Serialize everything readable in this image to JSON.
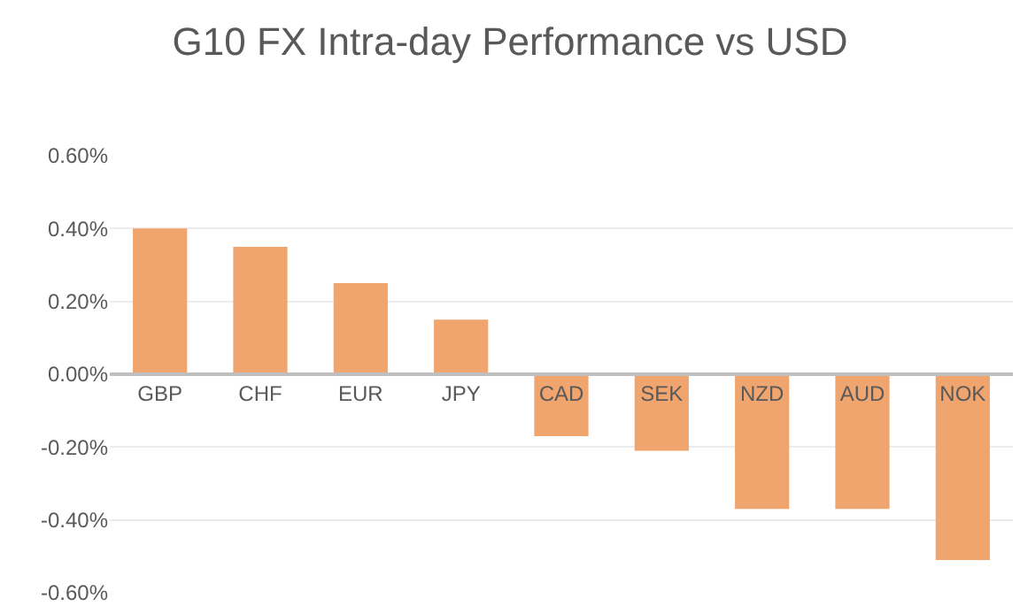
{
  "chart_data": {
    "type": "bar",
    "title": "G10 FX Intra-day Performance vs USD",
    "categories": [
      "GBP",
      "CHF",
      "EUR",
      "JPY",
      "CAD",
      "SEK",
      "NZD",
      "AUD",
      "NOK"
    ],
    "values": [
      0.4,
      0.35,
      0.25,
      0.15,
      -0.17,
      -0.21,
      -0.37,
      -0.37,
      -0.51
    ],
    "color": "#f0a46e",
    "ylim": [
      -0.6,
      0.6
    ],
    "yticks": [
      {
        "value": -0.6,
        "label": "-0.60%"
      },
      {
        "value": -0.4,
        "label": "-0.40%"
      },
      {
        "value": -0.2,
        "label": "-0.20%"
      },
      {
        "value": 0,
        "label": "0.00%"
      },
      {
        "value": 0.2,
        "label": "0.20%"
      },
      {
        "value": 0.4,
        "label": "0.40%"
      },
      {
        "value": 0.6,
        "label": "0.60%"
      }
    ],
    "grid": "y",
    "legend": false
  }
}
